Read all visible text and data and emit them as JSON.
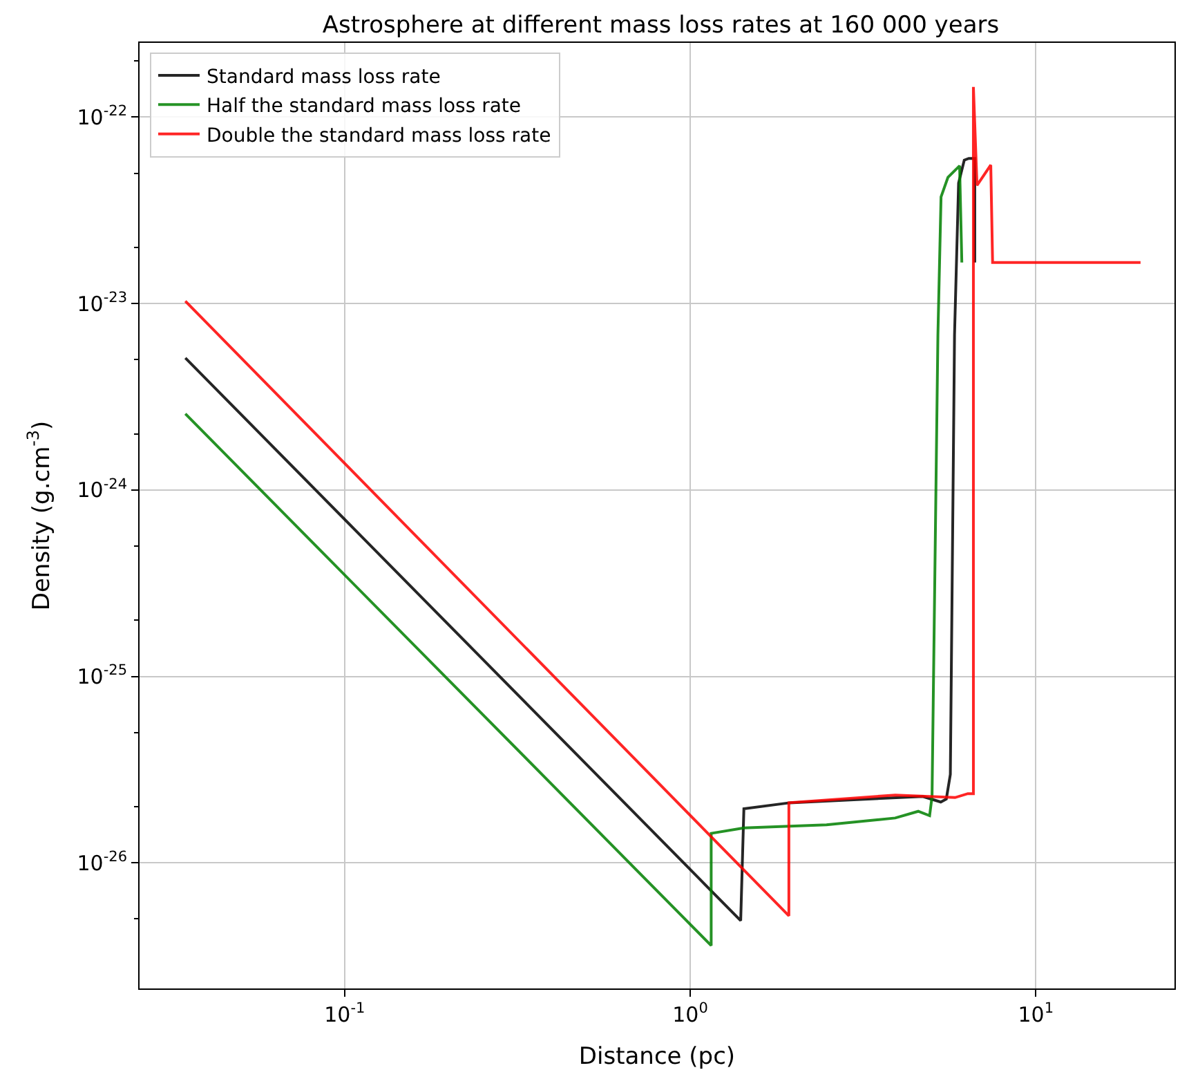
{
  "chart_data": {
    "type": "line",
    "title": "Astrosphere at different mass loss rates at 160 000 years",
    "xlabel": "Distance (pc)",
    "ylabel": "Density (g.cm$^{-3}$)",
    "log": "xy",
    "grid": true,
    "legend": "top left",
    "line_style": "solid",
    "marker": "none",
    "xlim": [
      0.0255,
      25.2
    ],
    "ylim": [
      2.12e-27,
      2.5e-22
    ],
    "xticks": [
      {
        "value": 0.1,
        "label": "10$^{-1}$"
      },
      {
        "value": 1,
        "label": "10$^{0}$"
      },
      {
        "value": 10,
        "label": "10$^{1}$"
      }
    ],
    "yticks": [
      {
        "value": 1e-26,
        "label": "10$^{-26}$"
      },
      {
        "value": 1e-25,
        "label": "10$^{-25}$"
      },
      {
        "value": 1e-24,
        "label": "10$^{-24}$"
      },
      {
        "value": 1e-23,
        "label": "10$^{-23}$"
      },
      {
        "value": 1e-22,
        "label": "10$^{-22}$"
      }
    ],
    "series": [
      {
        "name": "Standard mass loss rate",
        "color": "#000000",
        "x": [
          0.0346,
          1.4,
          1.43,
          1.94,
          4.71,
          5.31,
          5.51,
          5.66,
          5.82,
          5.98,
          6.21,
          6.4,
          6.66,
          6.66
        ],
        "values": [
          5.1e-24,
          4.9e-27,
          1.95e-26,
          2.1e-26,
          2.27e-26,
          2.12e-26,
          2.2e-26,
          2.98e-26,
          6.8e-24,
          4.43e-23,
          5.87e-23,
          6e-23,
          6e-23,
          1.66e-23
        ]
      },
      {
        "name": "Half the standard mass loss rate",
        "color": "#008000",
        "x": [
          0.0346,
          1.15,
          1.15,
          1.43,
          2.48,
          3.92,
          4.57,
          4.93,
          5.01,
          5.21,
          5.32,
          5.57,
          6.02,
          6.11
        ],
        "values": [
          2.56e-24,
          3.6e-27,
          1.44e-26,
          1.54e-26,
          1.6e-26,
          1.74e-26,
          1.89e-26,
          1.79e-26,
          2.27e-26,
          6.8e-24,
          3.73e-23,
          4.75e-23,
          5.48e-23,
          1.66e-23
        ]
      },
      {
        "name": "Double the standard mass loss rate",
        "color": "#ff0000",
        "x": [
          0.0346,
          1.93,
          1.93,
          3.92,
          5.84,
          6.36,
          6.6,
          6.6,
          6.76,
          7.41,
          7.5,
          20.1
        ],
        "values": [
          1.03e-23,
          5.2e-27,
          2.1e-26,
          2.31e-26,
          2.24e-26,
          2.35e-26,
          2.35e-26,
          1.45e-22,
          4.3e-23,
          5.53e-23,
          1.66e-23,
          1.66e-23
        ]
      }
    ]
  }
}
